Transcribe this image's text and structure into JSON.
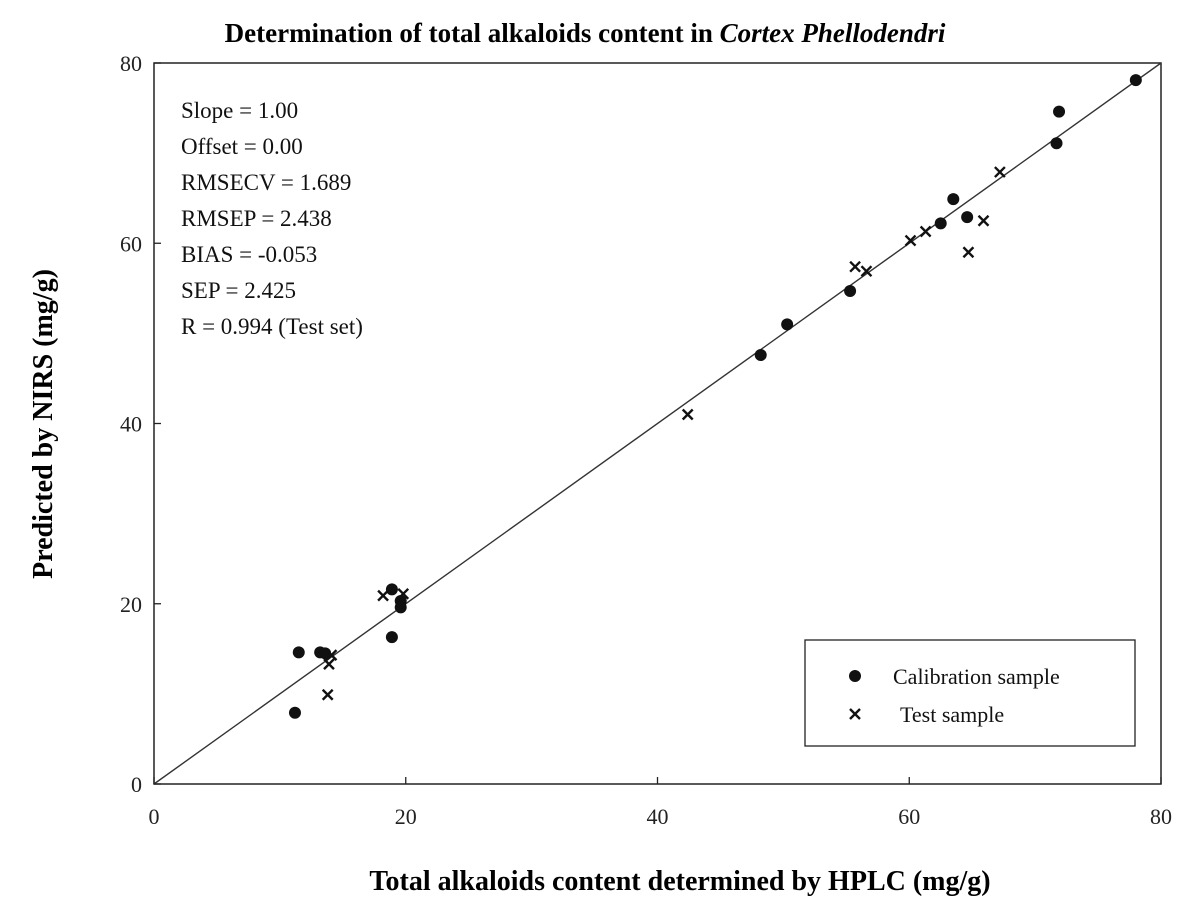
{
  "chart_data": {
    "type": "scatter",
    "title": "Determination of total alkaloids content in",
    "title_italic": "Cortex Phellodendri",
    "xlabel": "Total alkaloids content determined by HPLC (mg/g)",
    "ylabel": "Predicted by NIRS (mg/g)",
    "xlim": [
      0,
      80
    ],
    "ylim": [
      0,
      80
    ],
    "xticks": [
      0,
      20,
      40,
      60,
      80
    ],
    "yticks": [
      0,
      20,
      40,
      60,
      80
    ],
    "x_tick_labels": [
      "0",
      "20",
      "40",
      "60",
      "80"
    ],
    "y_tick_labels": [
      "0",
      "20",
      "40",
      "60",
      "80"
    ],
    "grid": false,
    "legend_position": "bottom-right",
    "reference_line": {
      "slope": 1.0,
      "offset": 0.0
    },
    "stats": [
      "Slope = 1.00",
      "Offset = 0.00",
      "RMSECV = 1.689",
      "RMSEP = 2.438",
      "BIAS = -0.053",
      "SEP = 2.425",
      "R = 0.994 (Test set)"
    ],
    "series": [
      {
        "name": "Calibration sample",
        "marker": "circle",
        "points": [
          [
            11.2,
            7.9
          ],
          [
            11.5,
            14.6
          ],
          [
            13.2,
            14.6
          ],
          [
            13.6,
            14.5
          ],
          [
            18.9,
            16.3
          ],
          [
            18.9,
            21.6
          ],
          [
            19.6,
            20.3
          ],
          [
            19.6,
            19.6
          ],
          [
            48.2,
            47.6
          ],
          [
            50.3,
            51.0
          ],
          [
            55.3,
            54.7
          ],
          [
            62.5,
            62.2
          ],
          [
            63.5,
            64.9
          ],
          [
            64.6,
            62.9
          ],
          [
            71.7,
            71.1
          ],
          [
            71.9,
            74.6
          ],
          [
            78.0,
            78.1
          ]
        ]
      },
      {
        "name": "Test sample",
        "marker": "cross",
        "points": [
          [
            13.8,
            9.9
          ],
          [
            13.9,
            13.3
          ],
          [
            14.1,
            14.3
          ],
          [
            18.2,
            20.9
          ],
          [
            19.8,
            21.1
          ],
          [
            42.4,
            41.0
          ],
          [
            55.7,
            57.4
          ],
          [
            56.6,
            56.9
          ],
          [
            60.1,
            60.3
          ],
          [
            61.3,
            61.3
          ],
          [
            64.7,
            59.0
          ],
          [
            65.9,
            62.5
          ],
          [
            67.2,
            67.9
          ]
        ]
      }
    ]
  }
}
